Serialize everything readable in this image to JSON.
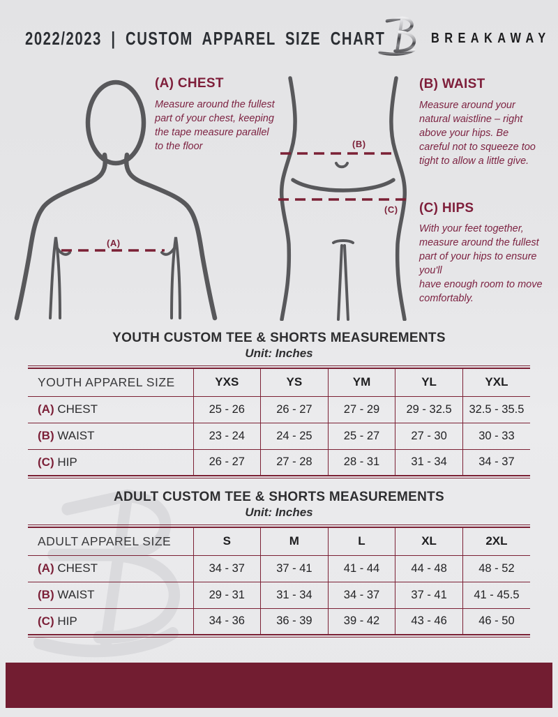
{
  "header": {
    "title": "2022/2023 | CUSTOM APPAREL SIZE CHART",
    "brand": "BREAKAWAY",
    "logo_icon": "breakaway-b-logo-mark"
  },
  "guides": {
    "chest": {
      "heading": "(A) CHEST",
      "description": "Measure around the fullest part of your chest, keeping the tape measure parallel to the floor",
      "marker": "(A)"
    },
    "waist": {
      "heading": "(B) WAIST",
      "description": "Measure around your natural waistline – right above your hips. Be careful not to squeeze too tight to allow a little give.",
      "marker": "(B)"
    },
    "hips": {
      "heading": "(C) HIPS",
      "description": "With your feet together, measure around the fullest part of your hips to ensure you'll\nhave enough room to move comfortably.",
      "marker": "(C)"
    }
  },
  "tables": [
    {
      "title": "YOUTH CUSTOM TEE & SHORTS MEASUREMENTS",
      "unit": "Unit: Inches",
      "size_label": "YOUTH APPAREL SIZE",
      "columns": [
        "YXS",
        "YS",
        "YM",
        "YL",
        "YXL"
      ],
      "rows": [
        {
          "prefix": "(A)",
          "label": "CHEST",
          "values": [
            "25 - 26",
            "26 - 27",
            "27 - 29",
            "29 - 32.5",
            "32.5 - 35.5"
          ]
        },
        {
          "prefix": "(B)",
          "label": "WAIST",
          "values": [
            "23 - 24",
            "24 - 25",
            "25 - 27",
            "27 - 30",
            "30 - 33"
          ]
        },
        {
          "prefix": "(C)",
          "label": "HIP",
          "values": [
            "26 - 27",
            "27 - 28",
            "28 - 31",
            "31 - 34",
            "34 - 37"
          ]
        }
      ]
    },
    {
      "title": "ADULT CUSTOM TEE & SHORTS MEASUREMENTS",
      "unit": "Unit: Inches",
      "size_label": "ADULT APPAREL SIZE",
      "columns": [
        "S",
        "M",
        "L",
        "XL",
        "2XL"
      ],
      "rows": [
        {
          "prefix": "(A)",
          "label": "CHEST",
          "values": [
            "34 - 37",
            "37 - 41",
            "41 - 44",
            "44 - 48",
            "48 - 52"
          ]
        },
        {
          "prefix": "(B)",
          "label": "WAIST",
          "values": [
            "29 - 31",
            "31 - 34",
            "34 - 37",
            "37 - 41",
            "41 - 45.5"
          ]
        },
        {
          "prefix": "(C)",
          "label": "HIP",
          "values": [
            "34 - 36",
            "36 - 39",
            "39 - 42",
            "43 - 46",
            "46 - 50"
          ]
        }
      ]
    }
  ],
  "colors": {
    "accent_maroon": "#7b2034",
    "footer_maroon": "#721d31",
    "heading_maroon": "#7e1e3a",
    "description_maroon": "#7d2342",
    "body_text": "#2b2e33",
    "figure_gray": "#58585b",
    "background": "#e7e7e9"
  }
}
